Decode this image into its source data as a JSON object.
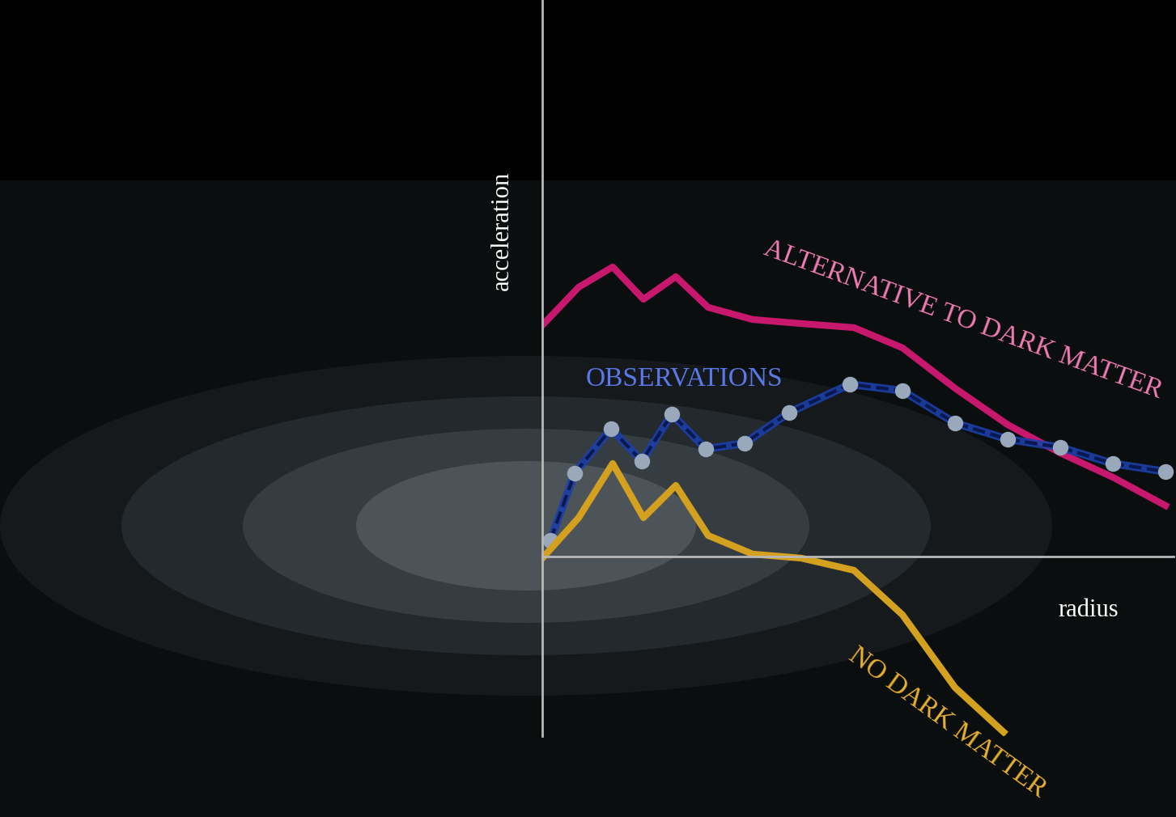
{
  "chart_data": {
    "type": "line",
    "x_label": "radius",
    "y_label": "acceleration",
    "xlim": [
      0,
      780
    ],
    "ylim": [
      -222,
      688
    ],
    "xticks": [],
    "yticks": [],
    "tick_labels": false,
    "grid": false,
    "series": [
      {
        "name": "ALTERNATIVE TO DARK MATTER",
        "color": "#c8186e",
        "line_style": "solid",
        "x": [
          2,
          45,
          87,
          125,
          165,
          205,
          260,
          320,
          385,
          445,
          510,
          575,
          640,
          705,
          770
        ],
        "values": [
          288,
          333,
          358,
          318,
          346,
          308,
          293,
          288,
          283,
          258,
          208,
          163,
          128,
          98,
          63
        ]
      },
      {
        "name": "OBSERVATIONS",
        "color": "#1c3fa8",
        "line_style": "dashed",
        "marker": "o",
        "x": [
          10,
          40,
          85,
          123,
          160,
          202,
          250,
          305,
          380,
          445,
          510,
          575,
          640,
          705,
          770
        ],
        "values": [
          20,
          103,
          158,
          118,
          176,
          133,
          140,
          178,
          213,
          205,
          165,
          145,
          135,
          115,
          105
        ]
      },
      {
        "name": "NO DARK MATTER",
        "color": "#d4a020",
        "line_style": "solid",
        "x": [
          2,
          45,
          87,
          125,
          165,
          205,
          260,
          320,
          385,
          445,
          510,
          570
        ],
        "values": [
          0,
          48,
          115,
          48,
          88,
          26,
          3,
          -2,
          -17,
          -72,
          -162,
          -217
        ]
      }
    ]
  }
}
